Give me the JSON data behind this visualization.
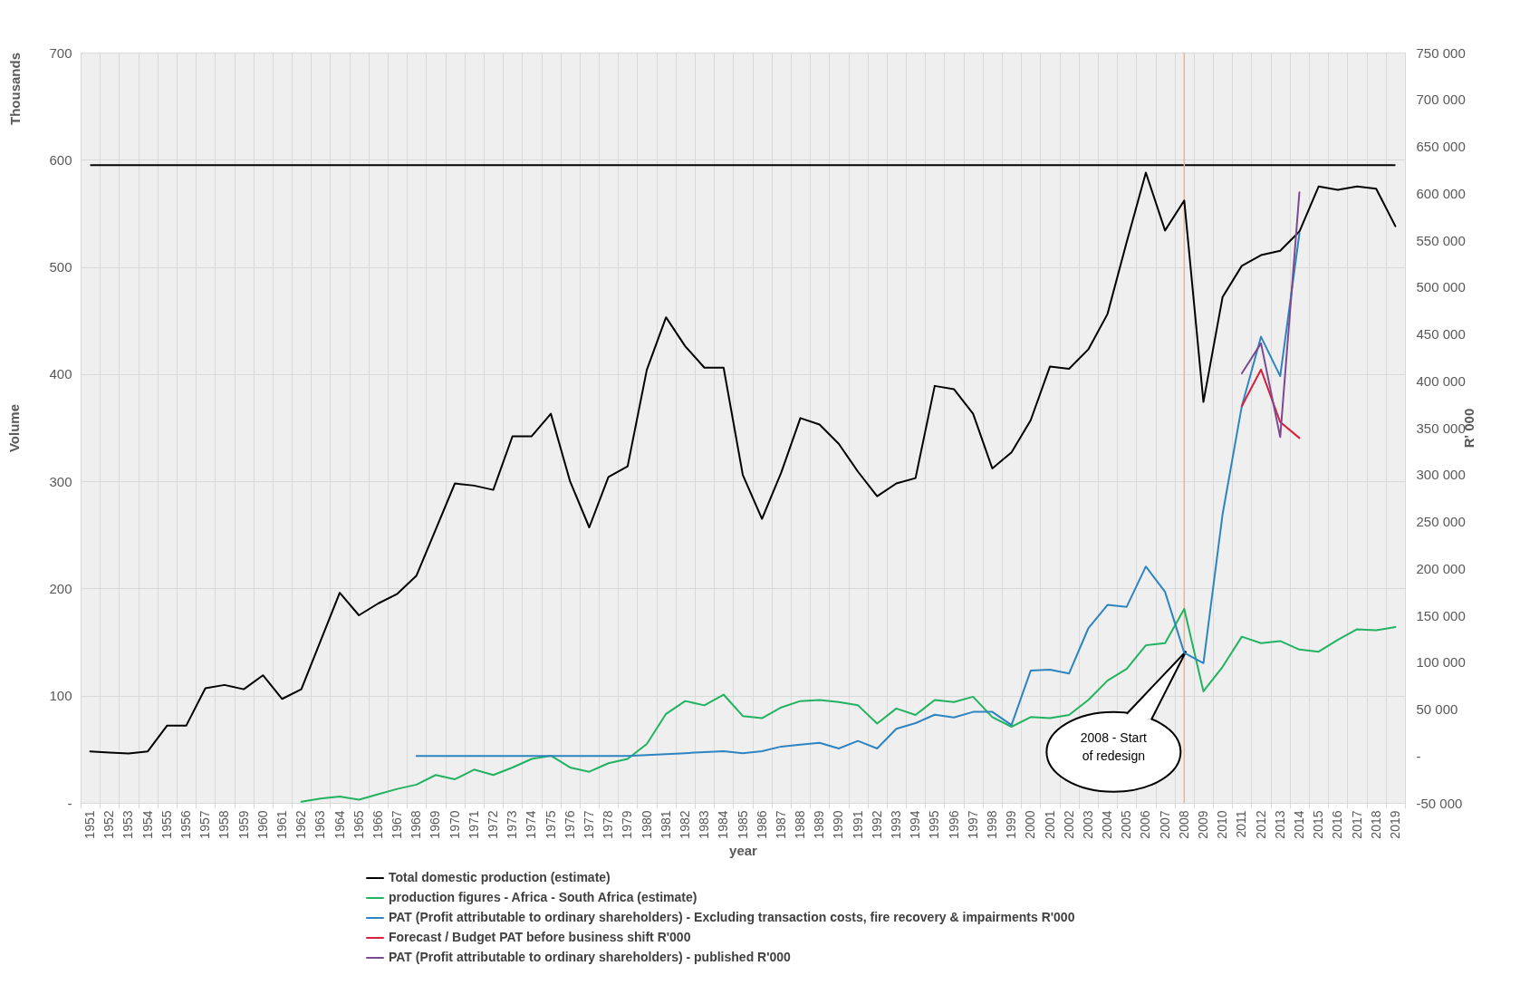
{
  "chart_data": {
    "type": "line",
    "xlabel": "year",
    "ylabel": "Volume",
    "y2label": "R' 000",
    "annotations": [
      "Thousands",
      "2008 - Start of redesign"
    ],
    "categories": [
      "1951",
      "1952",
      "1953",
      "1954",
      "1955",
      "1956",
      "1957",
      "1958",
      "1959",
      "1960",
      "1961",
      "1962",
      "1963",
      "1964",
      "1965",
      "1966",
      "1967",
      "1968",
      "1969",
      "1970",
      "1971",
      "1972",
      "1973",
      "1974",
      "1975",
      "1976",
      "1977",
      "1978",
      "1979",
      "1980",
      "1981",
      "1982",
      "1983",
      "1984",
      "1985",
      "1986",
      "1987",
      "1988",
      "1989",
      "1990",
      "1991",
      "1992",
      "1993",
      "1994",
      "1995",
      "1996",
      "1997",
      "1998",
      "1999",
      "2000",
      "2001",
      "2002",
      "2003",
      "2004",
      "2005",
      "2006",
      "2007",
      "2008",
      "2009",
      "2010",
      "2011",
      "2012",
      "2013",
      "2014",
      "2015",
      "2016",
      "2017",
      "2018",
      "2019"
    ],
    "series": [
      {
        "name": "Total domestic production (estimate)",
        "color": "#000000",
        "values": [
          48,
          47,
          46,
          48,
          72,
          72,
          107,
          110,
          106,
          119,
          97,
          106,
          151,
          196,
          175,
          186,
          195,
          212,
          255,
          298,
          296,
          292,
          342,
          342,
          363,
          300,
          257,
          304,
          314,
          404,
          453,
          426,
          406,
          406,
          306,
          265,
          308,
          359,
          353,
          335,
          309,
          286,
          298,
          303,
          389,
          386,
          363,
          312,
          327,
          357,
          407,
          405,
          423,
          456,
          523,
          588,
          534,
          562,
          374,
          472,
          501,
          511,
          515,
          533,
          575,
          572,
          575,
          573,
          538
        ]
      },
      {
        "name": "production figures - Africa - South Africa (estimate)",
        "color": "#21b35f",
        "values": [
          null,
          null,
          null,
          null,
          null,
          null,
          null,
          null,
          null,
          null,
          null,
          1,
          4,
          6,
          3,
          8,
          13,
          17,
          26,
          22,
          31,
          26,
          33,
          41,
          44,
          33,
          29,
          37,
          41,
          55,
          83,
          95,
          91,
          101,
          81,
          79,
          89,
          95,
          96,
          94,
          91,
          74,
          88,
          82,
          96,
          94,
          99,
          80,
          71,
          80,
          79,
          82,
          96,
          114,
          125,
          147,
          149,
          181,
          104,
          127,
          155,
          149,
          151,
          143,
          141,
          152,
          162,
          161,
          164
        ]
      },
      {
        "name": "PAT (Profit attributable to ordinary shareholders) - Excluding transaction costs, fire recovery & impairments R'000",
        "color": "#2e84c0",
        "axis": "y2",
        "values": [
          null,
          null,
          null,
          null,
          null,
          null,
          null,
          null,
          null,
          null,
          null,
          null,
          null,
          null,
          null,
          null,
          null,
          0,
          0,
          0,
          0,
          0,
          0,
          0,
          0,
          0,
          0,
          0,
          0,
          1000,
          2000,
          3000,
          4000,
          5000,
          3000,
          5000,
          10000,
          12000,
          14000,
          8000,
          16000,
          8000,
          29000,
          35000,
          44000,
          41000,
          47000,
          47000,
          33000,
          91000,
          92000,
          88000,
          136000,
          161000,
          159000,
          202000,
          175000,
          110000,
          99000,
          258000,
          373000,
          447000,
          405000,
          557000,
          null,
          null,
          null,
          null,
          null
        ]
      },
      {
        "name": "Forecast / Budget PAT before business shift R'000",
        "color": "#d81f3c",
        "axis": "y2",
        "values": [
          null,
          null,
          null,
          null,
          null,
          null,
          null,
          null,
          null,
          null,
          null,
          null,
          null,
          null,
          null,
          null,
          null,
          null,
          null,
          null,
          null,
          null,
          null,
          null,
          null,
          null,
          null,
          null,
          null,
          null,
          null,
          null,
          null,
          null,
          null,
          null,
          null,
          null,
          null,
          null,
          null,
          null,
          null,
          null,
          null,
          null,
          null,
          null,
          null,
          null,
          null,
          null,
          null,
          null,
          null,
          null,
          null,
          null,
          null,
          null,
          373000,
          412000,
          356000,
          339000,
          null,
          null,
          null,
          null,
          null
        ]
      },
      {
        "name": "PAT (Profit attributable to ordinary shareholders) - published R'000",
        "color": "#7b4a91",
        "axis": "y2",
        "values": [
          null,
          null,
          null,
          null,
          null,
          null,
          null,
          null,
          null,
          null,
          null,
          null,
          null,
          null,
          null,
          null,
          null,
          null,
          null,
          null,
          null,
          null,
          null,
          null,
          null,
          null,
          null,
          null,
          null,
          null,
          null,
          null,
          null,
          null,
          null,
          null,
          null,
          null,
          null,
          null,
          null,
          null,
          null,
          null,
          null,
          null,
          null,
          null,
          null,
          null,
          null,
          null,
          null,
          null,
          null,
          null,
          null,
          null,
          null,
          null,
          408000,
          440000,
          340000,
          601000,
          null,
          null,
          null,
          null,
          null
        ]
      }
    ],
    "ylim": [
      0,
      700
    ],
    "yticks": [
      {
        "value": 0,
        "label": "-"
      },
      100,
      200,
      300,
      400,
      500,
      600,
      700
    ],
    "y2lim": [
      -50000,
      750000
    ],
    "y2ticks": [
      {
        "value": -50000,
        "label": "-50 000"
      },
      {
        "value": 0,
        "label": "-"
      },
      {
        "value": 50000,
        "label": "50 000"
      },
      {
        "value": 100000,
        "label": "100 000"
      },
      {
        "value": 150000,
        "label": "150 000"
      },
      {
        "value": 200000,
        "label": "200 000"
      },
      {
        "value": 250000,
        "label": "250 000"
      },
      {
        "value": 300000,
        "label": "300 000"
      },
      {
        "value": 350000,
        "label": "350 000"
      },
      {
        "value": 400000,
        "label": "400 000"
      },
      {
        "value": 450000,
        "label": "450 000"
      },
      {
        "value": 500000,
        "label": "500 000"
      },
      {
        "value": 550000,
        "label": "550 000"
      },
      {
        "value": 600000,
        "label": "600 000"
      },
      {
        "value": 650000,
        "label": "650 000"
      },
      {
        "value": 700000,
        "label": "700 000"
      },
      {
        "value": 750000,
        "label": "750 000"
      }
    ],
    "ref_lines": [
      {
        "axis": "y",
        "value": 595,
        "color": "#000000"
      },
      {
        "axis": "x",
        "value": "2008",
        "color": "#f4b183"
      }
    ],
    "grid": true,
    "legend": "bottom"
  }
}
